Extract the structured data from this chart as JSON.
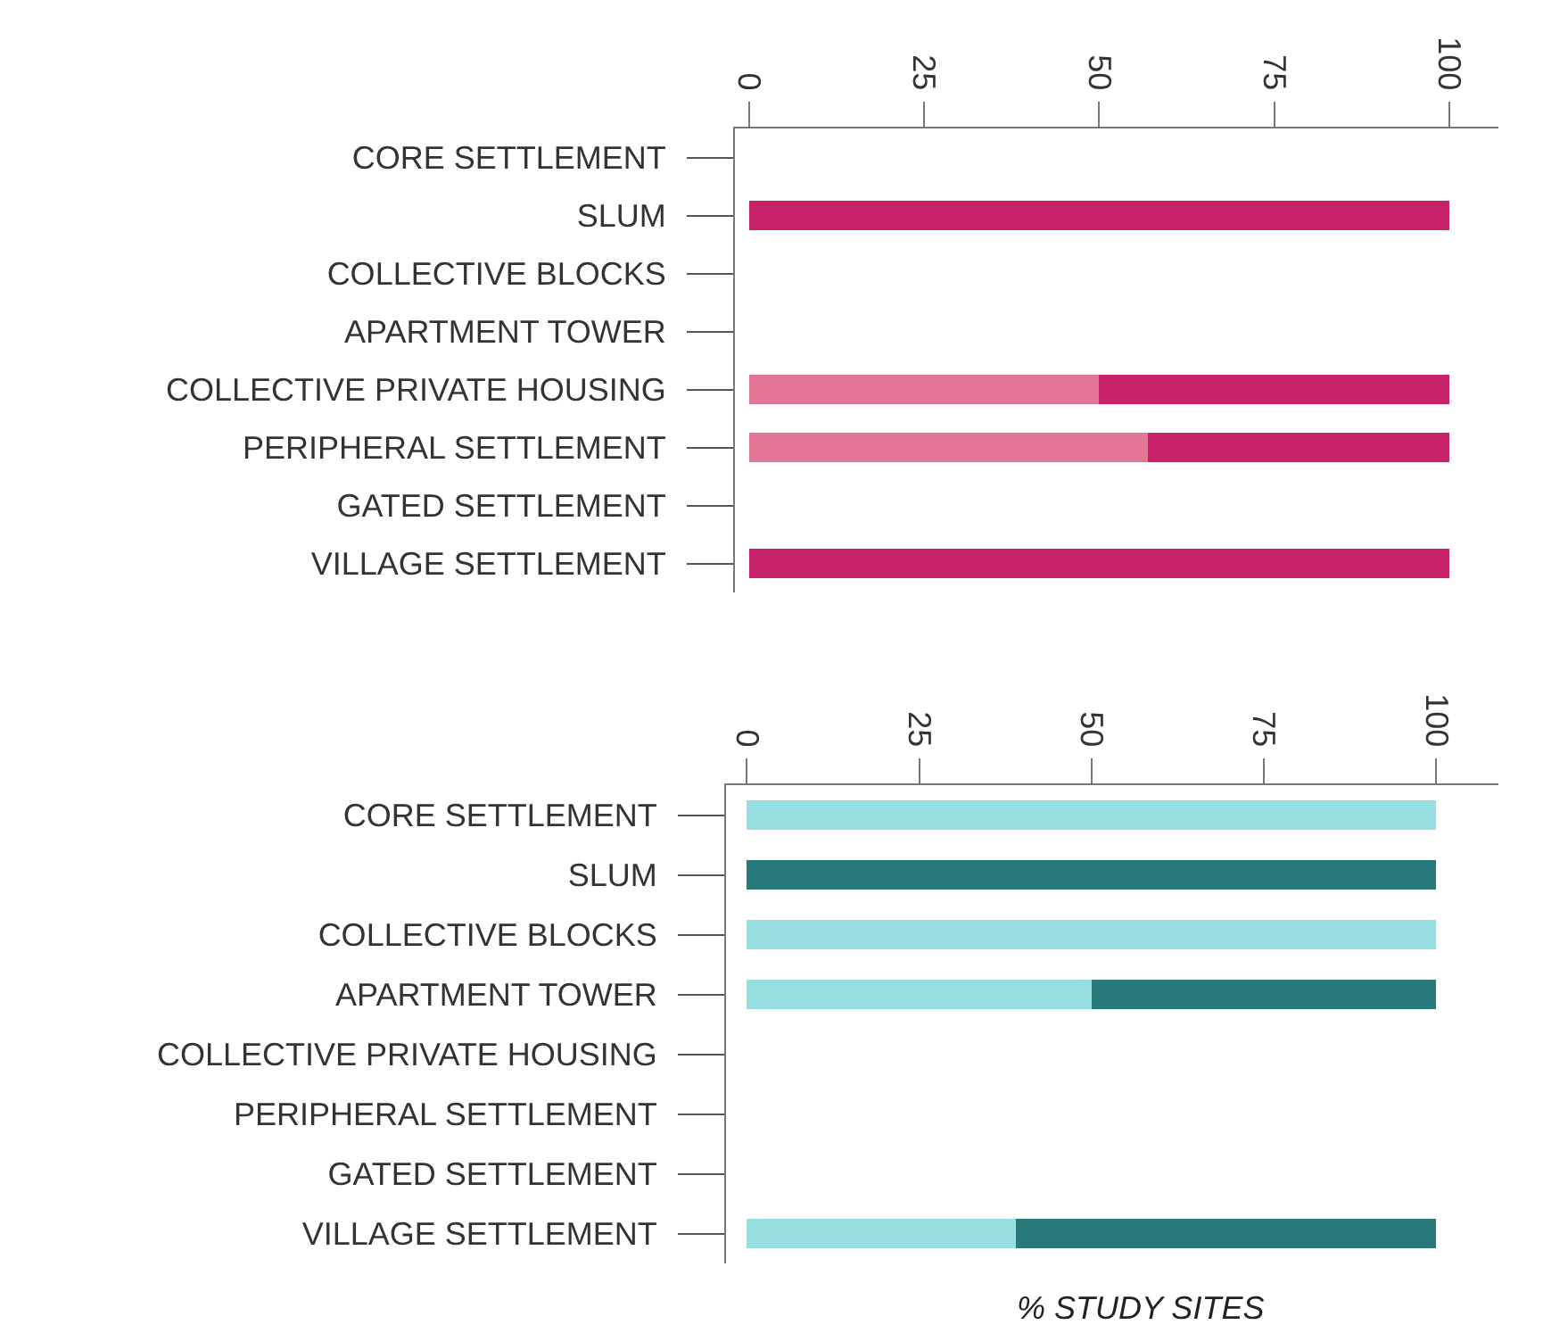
{
  "chart_data": [
    {
      "type": "bar",
      "orientation": "horizontal",
      "stacked": true,
      "categories": [
        "CORE SETTLEMENT",
        "SLUM",
        "COLLECTIVE BLOCKS",
        "APARTMENT TOWER",
        "COLLECTIVE PRIVATE HOUSING",
        "PERIPHERAL SETTLEMENT",
        "GATED SETTLEMENT",
        "VILLAGE SETTLEMENT"
      ],
      "series": [
        {
          "color": "#e37595",
          "values": [
            0,
            0,
            0,
            0,
            50,
            57,
            0,
            0
          ]
        },
        {
          "color": "#c8226a",
          "values": [
            0,
            100,
            0,
            0,
            50,
            43,
            0,
            100
          ]
        }
      ],
      "xlim": [
        -2,
        107
      ],
      "xticks": [
        0,
        25,
        50,
        75,
        100
      ],
      "grid": false
    },
    {
      "type": "bar",
      "orientation": "horizontal",
      "stacked": true,
      "categories": [
        "CORE SETTLEMENT",
        "SLUM",
        "COLLECTIVE BLOCKS",
        "APARTMENT TOWER",
        "COLLECTIVE PRIVATE HOUSING",
        "PERIPHERAL SETTLEMENT",
        "GATED SETTLEMENT",
        "VILLAGE SETTLEMENT"
      ],
      "series": [
        {
          "color": "#97dee0",
          "values": [
            100,
            0,
            100,
            50,
            0,
            0,
            0,
            39
          ]
        },
        {
          "color": "#27797a",
          "values": [
            0,
            100,
            0,
            50,
            0,
            0,
            0,
            61
          ]
        }
      ],
      "xlim": [
        -3,
        109
      ],
      "xticks": [
        0,
        25,
        50,
        75,
        100
      ],
      "grid": false,
      "annotations": [
        "% STUDY SITES"
      ]
    }
  ]
}
